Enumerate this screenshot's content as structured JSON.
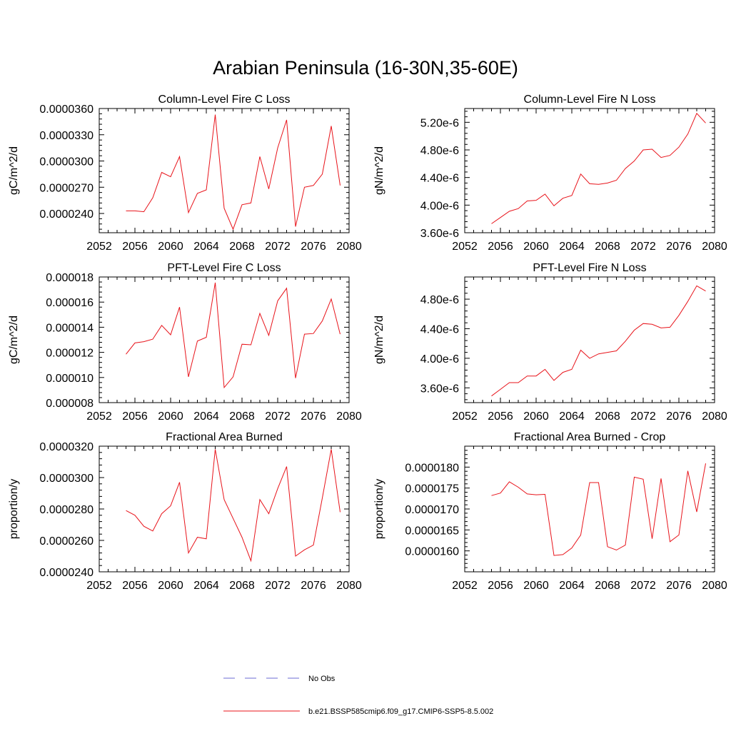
{
  "figure": {
    "title": "Arabian Peninsula (16-30N,35-60E)"
  },
  "legend": [
    {
      "label": "No Obs",
      "color": "#6b6bd6",
      "style": "dashed"
    },
    {
      "label": "b.e21.BSSP585cmip6.f09_g17.CMIP6-SSP5-8.5.002",
      "color": "#e8141b",
      "style": "solid"
    }
  ],
  "series_color": "#e8141b",
  "chart_data": [
    {
      "type": "line",
      "title": "Column-Level Fire C Loss",
      "ylabel": "gC/m^2/d",
      "xlim": [
        2052,
        2080
      ],
      "ylim": [
        2.18e-05,
        3.6e-05
      ],
      "xticks": [
        "2052",
        "2056",
        "2060",
        "2064",
        "2068",
        "2072",
        "2076",
        "2080"
      ],
      "yticks": [
        {
          "value": 2.4e-05,
          "label": "0.0000240"
        },
        {
          "value": 2.7e-05,
          "label": "0.0000270"
        },
        {
          "value": 3e-05,
          "label": "0.0000300"
        },
        {
          "value": 3.3e-05,
          "label": "0.0000330"
        },
        {
          "value": 3.6e-05,
          "label": "0.0000360"
        }
      ],
      "x": [
        2055,
        2056,
        2057,
        2058,
        2059,
        2060,
        2061,
        2062,
        2063,
        2064,
        2065,
        2066,
        2067,
        2068,
        2069,
        2070,
        2071,
        2072,
        2073,
        2074,
        2075,
        2076,
        2077,
        2078,
        2079
      ],
      "values": [
        2.43e-05,
        2.43e-05,
        2.42e-05,
        2.58e-05,
        2.87e-05,
        2.82e-05,
        3.05e-05,
        2.41e-05,
        2.63e-05,
        2.67e-05,
        3.53e-05,
        2.46e-05,
        2.22e-05,
        2.5e-05,
        2.52e-05,
        3.05e-05,
        2.68e-05,
        3.15e-05,
        3.47e-05,
        2.25e-05,
        2.7e-05,
        2.72e-05,
        2.85e-05,
        3.4e-05,
        2.72e-05
      ]
    },
    {
      "type": "line",
      "title": "Column-Level Fire N Loss",
      "ylabel": "gN/m^2/d",
      "xlim": [
        2052,
        2080
      ],
      "ylim": [
        3.6e-06,
        5.4e-06
      ],
      "xticks": [
        "2052",
        "2056",
        "2060",
        "2064",
        "2068",
        "2072",
        "2076",
        "2080"
      ],
      "yticks": [
        {
          "value": 3.6e-06,
          "label": "3.60e-6"
        },
        {
          "value": 4e-06,
          "label": "4.00e-6"
        },
        {
          "value": 4.4e-06,
          "label": "4.40e-6"
        },
        {
          "value": 4.8e-06,
          "label": "4.80e-6"
        },
        {
          "value": 5.2e-06,
          "label": "5.20e-6"
        }
      ],
      "x": [
        2055,
        2056,
        2057,
        2058,
        2059,
        2060,
        2061,
        2062,
        2063,
        2064,
        2065,
        2066,
        2067,
        2068,
        2069,
        2070,
        2071,
        2072,
        2073,
        2074,
        2075,
        2076,
        2077,
        2078,
        2079
      ],
      "values": [
        3.73e-06,
        3.82e-06,
        3.91e-06,
        3.95e-06,
        4.06e-06,
        4.07e-06,
        4.16e-06,
        3.99e-06,
        4.1e-06,
        4.14e-06,
        4.45e-06,
        4.31e-06,
        4.3e-06,
        4.32e-06,
        4.36e-06,
        4.53e-06,
        4.64e-06,
        4.8e-06,
        4.81e-06,
        4.69e-06,
        4.72e-06,
        4.84e-06,
        5.03e-06,
        5.33e-06,
        5.19e-06
      ]
    },
    {
      "type": "line",
      "title": "PFT-Level Fire C Loss",
      "ylabel": "gC/m^2/d",
      "xlim": [
        2052,
        2080
      ],
      "ylim": [
        8e-06,
        1.8e-05
      ],
      "xticks": [
        "2052",
        "2056",
        "2060",
        "2064",
        "2068",
        "2072",
        "2076",
        "2080"
      ],
      "yticks": [
        {
          "value": 8e-06,
          "label": "0.000008"
        },
        {
          "value": 1e-05,
          "label": "0.000010"
        },
        {
          "value": 1.2e-05,
          "label": "0.000012"
        },
        {
          "value": 1.4e-05,
          "label": "0.000014"
        },
        {
          "value": 1.6e-05,
          "label": "0.000016"
        },
        {
          "value": 1.8e-05,
          "label": "0.000018"
        }
      ],
      "x": [
        2055,
        2056,
        2057,
        2058,
        2059,
        2060,
        2061,
        2062,
        2063,
        2064,
        2065,
        2066,
        2067,
        2068,
        2069,
        2070,
        2071,
        2072,
        2073,
        2074,
        2075,
        2076,
        2077,
        2078,
        2079
      ],
      "values": [
        1.185e-05,
        1.275e-05,
        1.285e-05,
        1.305e-05,
        1.415e-05,
        1.34e-05,
        1.56e-05,
        1.005e-05,
        1.29e-05,
        1.32e-05,
        1.755e-05,
        9.2e-06,
        1.005e-05,
        1.265e-05,
        1.26e-05,
        1.51e-05,
        1.335e-05,
        1.61e-05,
        1.71e-05,
        9.95e-06,
        1.345e-05,
        1.35e-05,
        1.45e-05,
        1.625e-05,
        1.345e-05
      ]
    },
    {
      "type": "line",
      "title": "PFT-Level Fire N Loss",
      "ylabel": "gN/m^2/d",
      "xlim": [
        2052,
        2080
      ],
      "ylim": [
        3.4e-06,
        5.1e-06
      ],
      "xticks": [
        "2052",
        "2056",
        "2060",
        "2064",
        "2068",
        "2072",
        "2076",
        "2080"
      ],
      "yticks": [
        {
          "value": 3.6e-06,
          "label": "3.60e-6"
        },
        {
          "value": 4e-06,
          "label": "4.00e-6"
        },
        {
          "value": 4.4e-06,
          "label": "4.40e-6"
        },
        {
          "value": 4.8e-06,
          "label": "4.80e-6"
        }
      ],
      "x": [
        2055,
        2056,
        2057,
        2058,
        2059,
        2060,
        2061,
        2062,
        2063,
        2064,
        2065,
        2066,
        2067,
        2068,
        2069,
        2070,
        2071,
        2072,
        2073,
        2074,
        2075,
        2076,
        2077,
        2078,
        2079
      ],
      "values": [
        3.49e-06,
        3.58e-06,
        3.67e-06,
        3.67e-06,
        3.76e-06,
        3.76e-06,
        3.85e-06,
        3.7e-06,
        3.81e-06,
        3.85e-06,
        4.11e-06,
        4e-06,
        4.06e-06,
        4.08e-06,
        4.1e-06,
        4.23e-06,
        4.38e-06,
        4.47e-06,
        4.46e-06,
        4.41e-06,
        4.42e-06,
        4.58e-06,
        4.77e-06,
        4.98e-06,
        4.91e-06
      ]
    },
    {
      "type": "line",
      "title": "Fractional Area Burned",
      "ylabel": "proportion/y",
      "xlim": [
        2052,
        2080
      ],
      "ylim": [
        2.4e-05,
        3.2e-05
      ],
      "xticks": [
        "2052",
        "2056",
        "2060",
        "2064",
        "2068",
        "2072",
        "2076",
        "2080"
      ],
      "yticks": [
        {
          "value": 2.4e-05,
          "label": "0.0000240"
        },
        {
          "value": 2.6e-05,
          "label": "0.0000260"
        },
        {
          "value": 2.8e-05,
          "label": "0.0000280"
        },
        {
          "value": 3e-05,
          "label": "0.0000300"
        },
        {
          "value": 3.2e-05,
          "label": "0.0000320"
        }
      ],
      "x": [
        2055,
        2056,
        2057,
        2058,
        2059,
        2060,
        2061,
        2062,
        2063,
        2064,
        2065,
        2066,
        2067,
        2068,
        2069,
        2070,
        2071,
        2072,
        2073,
        2074,
        2075,
        2076,
        2077,
        2078,
        2079
      ],
      "values": [
        2.79e-05,
        2.76e-05,
        2.69e-05,
        2.66e-05,
        2.77e-05,
        2.82e-05,
        2.97e-05,
        2.52e-05,
        2.62e-05,
        2.61e-05,
        3.18e-05,
        2.86e-05,
        2.74e-05,
        2.62e-05,
        2.47e-05,
        2.86e-05,
        2.77e-05,
        2.93e-05,
        3.07e-05,
        2.5e-05,
        2.54e-05,
        2.57e-05,
        2.87e-05,
        3.18e-05,
        2.78e-05
      ]
    },
    {
      "type": "line",
      "title": "Fractional Area Burned - Crop",
      "ylabel": "proportion/y",
      "xlim": [
        2052,
        2080
      ],
      "ylim": [
        1.55e-05,
        1.85e-05
      ],
      "xticks": [
        "2052",
        "2056",
        "2060",
        "2064",
        "2068",
        "2072",
        "2076",
        "2080"
      ],
      "yticks": [
        {
          "value": 1.6e-05,
          "label": "0.0000160"
        },
        {
          "value": 1.65e-05,
          "label": "0.0000165"
        },
        {
          "value": 1.7e-05,
          "label": "0.0000170"
        },
        {
          "value": 1.75e-05,
          "label": "0.0000175"
        },
        {
          "value": 1.8e-05,
          "label": "0.0000180"
        }
      ],
      "x": [
        2055,
        2056,
        2057,
        2058,
        2059,
        2060,
        2061,
        2062,
        2063,
        2064,
        2065,
        2066,
        2067,
        2068,
        2069,
        2070,
        2071,
        2072,
        2073,
        2074,
        2075,
        2076,
        2077,
        2078,
        2079
      ],
      "values": [
        1.732e-05,
        1.738e-05,
        1.765e-05,
        1.752e-05,
        1.736e-05,
        1.734e-05,
        1.735e-05,
        1.589e-05,
        1.591e-05,
        1.607e-05,
        1.638e-05,
        1.763e-05,
        1.763e-05,
        1.61e-05,
        1.602e-05,
        1.614e-05,
        1.776e-05,
        1.771e-05,
        1.629e-05,
        1.773e-05,
        1.622e-05,
        1.638e-05,
        1.791e-05,
        1.693e-05,
        1.809e-05
      ]
    }
  ]
}
